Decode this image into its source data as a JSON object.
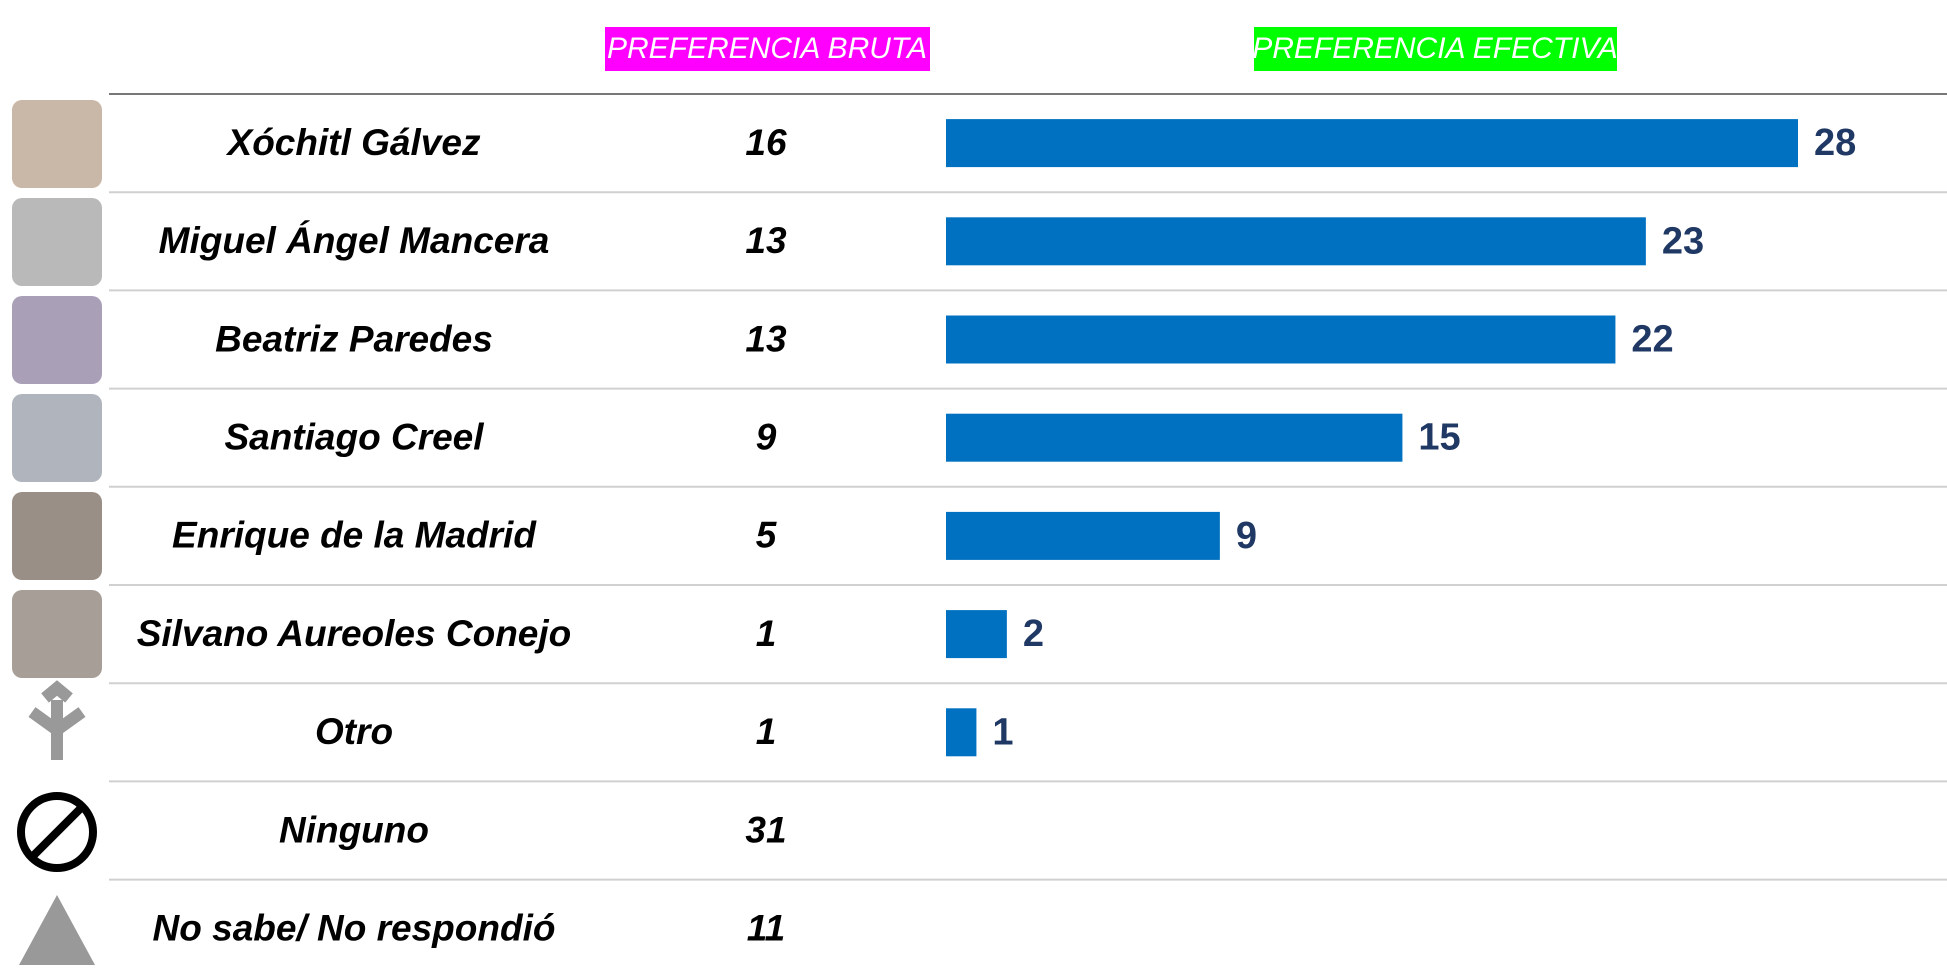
{
  "chart_data": {
    "type": "bar",
    "categories": [
      "Xóchitl Gálvez",
      "Miguel Ángel Mancera",
      "Beatriz Paredes",
      "Santiago Creel",
      "Enrique de la Madrid",
      "Silvano Aureoles Conejo",
      "Otro",
      "Ninguno",
      "No sabe/ No respondió"
    ],
    "series": [
      {
        "name": "PREFERENCIA BRUTA",
        "color": "#ff00ff",
        "values": [
          16,
          13,
          13,
          9,
          5,
          1,
          1,
          31,
          11
        ]
      },
      {
        "name": "PREFERENCIA EFECTIVA",
        "color": "#00ff00",
        "values": [
          28,
          23,
          22,
          15,
          9,
          2,
          1,
          null,
          null
        ]
      }
    ],
    "bar_color": "#0070c0",
    "label_color": "#1f3864"
  }
}
